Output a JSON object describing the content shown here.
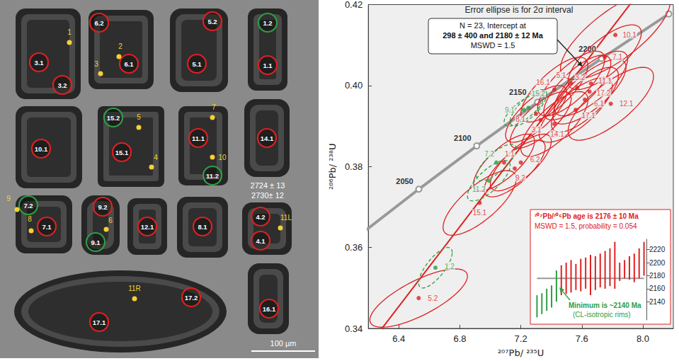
{
  "image_panel": {
    "scale_bar": "100 µm",
    "spots": [
      {
        "label": "3.1",
        "color": "#e02020"
      },
      {
        "label": "3.2",
        "color": "#e02020"
      },
      {
        "label": "6.2",
        "color": "#e02020"
      },
      {
        "label": "6.1",
        "color": "#e02020"
      },
      {
        "label": "5.2",
        "color": "#e02020"
      },
      {
        "label": "5.1",
        "color": "#e02020"
      },
      {
        "label": "1.2",
        "color": "#2e9e44"
      },
      {
        "label": "1.1",
        "color": "#e02020"
      },
      {
        "label": "10.1",
        "color": "#e02020"
      },
      {
        "label": "15.2",
        "color": "#2e9e44"
      },
      {
        "label": "15.1",
        "color": "#e02020"
      },
      {
        "label": "11.1",
        "color": "#e02020"
      },
      {
        "label": "11.2",
        "color": "#2e9e44"
      },
      {
        "label": "14.1",
        "color": "#e02020"
      },
      {
        "label": "7.2",
        "color": "#2e9e44"
      },
      {
        "label": "7.1",
        "color": "#e02020"
      },
      {
        "label": "9.2",
        "color": "#e02020"
      },
      {
        "label": "9.1",
        "color": "#2e9e44"
      },
      {
        "label": "12.1",
        "color": "#e02020"
      },
      {
        "label": "8.1",
        "color": "#e02020"
      },
      {
        "label": "4.2",
        "color": "#e02020"
      },
      {
        "label": "4.1",
        "color": "#e02020"
      },
      {
        "label": "17.1",
        "color": "#e02020"
      },
      {
        "label": "17.2",
        "color": "#e02020"
      },
      {
        "label": "16.1",
        "color": "#e02020"
      }
    ],
    "points": [
      "1",
      "2",
      "3",
      "5",
      "4",
      "7",
      "10",
      "9",
      "8",
      "6",
      "11L",
      "11R"
    ],
    "point_color": "#f5d033",
    "ages": [
      "2724 ± 13",
      "2730± 12"
    ]
  },
  "chart_data": {
    "type": "concordia",
    "title": "Error ellipse is for 2σ interval",
    "x_label": "²⁰⁷Pb/ ²³⁵U",
    "y_label": "²⁰⁶Pb/ ²³⁸U",
    "xlim": [
      6.2,
      8.2
    ],
    "xticks": [
      6.4,
      6.8,
      7.2,
      7.6,
      {
        "value": 8,
        "label": "8.0"
      }
    ],
    "ylim": [
      0.34,
      0.42
    ],
    "yticks": [
      0.34,
      0.36,
      0.38,
      {
        "value": 0.4,
        "label": "0.40"
      },
      0.42
    ],
    "grid": false,
    "concordia": {
      "color": "#999999",
      "x": [
        6.168,
        6.531,
        6.911,
        7.31,
        7.729,
        8.17
      ],
      "y": [
        0.3638,
        0.3744,
        0.3851,
        0.3959,
        0.4067,
        0.4177
      ],
      "labels": [
        null,
        "2050",
        "2100",
        "2150",
        "2200",
        null
      ]
    },
    "discordia": {
      "color": "#e02020",
      "x": [
        6.2,
        8.0
      ],
      "y": [
        0.3356,
        0.4242
      ]
    },
    "annotation": [
      "N = 23, Intercept at",
      "298 ± 400 and 2180 ± 12 Ma",
      "MSWD = 1.5"
    ],
    "series": [
      {
        "color": "#e02020",
        "line_style": "solid",
        "spots": [
          {
            "label": "10.1",
            "x": 7.82,
            "y": 0.4125,
            "sx": 0.36,
            "sy": 0.011,
            "rho": 0.75
          },
          {
            "label": "7.1",
            "x": 7.75,
            "y": 0.407,
            "sx": 0.24,
            "sy": 0.008,
            "rho": 0.75
          },
          {
            "label": "5.1",
            "x": 7.53,
            "y": 0.4005,
            "sx": 0.22,
            "sy": 0.008,
            "rho": 0.75
          },
          {
            "label": "3.2",
            "x": 7.57,
            "y": 0.3995,
            "sx": 0.22,
            "sy": 0.008,
            "rho": 0.75
          },
          {
            "label": "11.1",
            "x": 7.66,
            "y": 0.4005,
            "sx": 0.24,
            "sy": 0.008,
            "rho": 0.75
          },
          {
            "label": "16.1",
            "x": 7.42,
            "y": 0.399,
            "sx": 0.22,
            "sy": 0.008,
            "rho": 0.75
          },
          {
            "label": "17.2",
            "x": 7.65,
            "y": 0.3985,
            "sx": 0.24,
            "sy": 0.008,
            "rho": 0.75
          },
          {
            "label": "6.1",
            "x": 7.62,
            "y": 0.3965,
            "sx": 0.22,
            "sy": 0.008,
            "rho": 0.75
          },
          {
            "label": "12.1",
            "x": 7.79,
            "y": 0.3955,
            "sx": 0.28,
            "sy": 0.009,
            "rho": 0.75
          },
          {
            "label": "17.1",
            "x": 7.56,
            "y": 0.394,
            "sx": 0.24,
            "sy": 0.008,
            "rho": 0.75
          },
          {
            "label": "14.1",
            "x": 7.42,
            "y": 0.3905,
            "sx": 0.22,
            "sy": 0.008,
            "rho": 0.75
          },
          {
            "label": "3.1",
            "x": 7.33,
            "y": 0.3915,
            "sx": 0.2,
            "sy": 0.007,
            "rho": 0.75
          },
          {
            "label": "8.1",
            "x": 7.3,
            "y": 0.393,
            "sx": 0.2,
            "sy": 0.007,
            "rho": 0.75
          },
          {
            "label": "1.1",
            "x": 7.09,
            "y": 0.381,
            "sx": 0.2,
            "sy": 0.007,
            "rho": 0.75
          },
          {
            "label": "6.2",
            "x": 7.2,
            "y": 0.381,
            "sx": 0.2,
            "sy": 0.007,
            "rho": 0.75
          },
          {
            "label": "9.2",
            "x": 7.16,
            "y": 0.3795,
            "sx": 0.2,
            "sy": 0.007,
            "rho": 0.75
          },
          {
            "label": "15.1",
            "x": 6.93,
            "y": 0.371,
            "sx": 0.24,
            "sy": 0.008,
            "rho": 0.75
          },
          {
            "label": "5.2",
            "x": 6.53,
            "y": 0.3475,
            "sx": 0.32,
            "sy": 0.0072,
            "rho": 0.75
          }
        ]
      },
      {
        "color": "#2e9e44",
        "line_style": "dashed",
        "spots": [
          {
            "label": "15.2",
            "x": 7.25,
            "y": 0.3945,
            "sx": 0.12,
            "sy": 0.0045,
            "rho": 0.75
          },
          {
            "label": "9.1",
            "x": 7.22,
            "y": 0.394,
            "sx": 0.13,
            "sy": 0.004,
            "rho": 0.75
          },
          {
            "label": "7.2",
            "x": 7.04,
            "y": 0.381,
            "sx": 0.13,
            "sy": 0.0045,
            "rho": 0.75
          },
          {
            "label": "11.2",
            "x": 6.99,
            "y": 0.3765,
            "sx": 0.14,
            "sy": 0.005,
            "rho": 0.75
          },
          {
            "label": "1.2",
            "x": 6.64,
            "y": 0.355,
            "sx": 0.11,
            "sy": 0.005,
            "rho": 0.75
          }
        ]
      }
    ],
    "inset": {
      "type": "errorbar",
      "title_lines": [
        "²⁰⁷Pb/²⁰⁶Pb age is 2176 ± 10 Ma",
        "MSWD = 1.5, probability = 0.054"
      ],
      "note_lines": [
        "Minimum is ~2140 Ma",
        "(CL-isotropic rims)"
      ],
      "ylim": [
        2112,
        2236
      ],
      "yticks": [
        2140,
        2160,
        2180,
        2200,
        2220
      ],
      "mean": {
        "value": 2176,
        "color": "#999999"
      },
      "series": [
        {
          "color": "#2e9e44",
          "low": [
            2116,
            2121,
            2126,
            2131,
            2140
          ],
          "high": [
            2150,
            2153,
            2160,
            2165,
            2188
          ]
        },
        {
          "color": "#e02020",
          "low": [
            2150,
            2152,
            2154,
            2158,
            2156,
            2160,
            2150,
            2158,
            2162,
            2160,
            2164,
            2160,
            2172,
            2176,
            2174,
            2170,
            2176,
            2180
          ],
          "high": [
            2196,
            2200,
            2204,
            2198,
            2206,
            2208,
            2212,
            2210,
            2214,
            2218,
            2222,
            2232,
            2200,
            2204,
            2210,
            2214,
            2222,
            2232
          ]
        }
      ]
    }
  }
}
